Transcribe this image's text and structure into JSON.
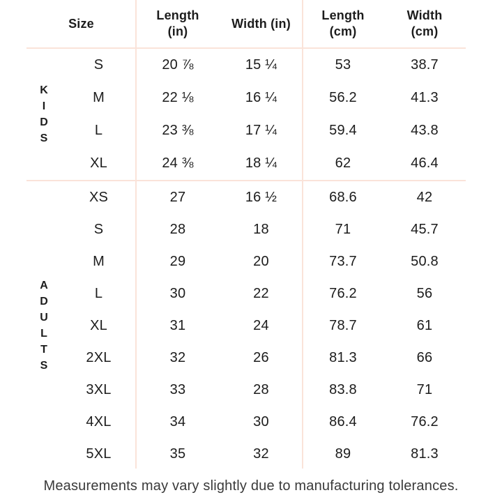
{
  "page": {
    "background": "#ffffff",
    "line_color": "#fae3d9",
    "text_color": "#1c1c1c",
    "footer_note": "Measurements may vary slightly due to manufacturing tolerances."
  },
  "table": {
    "headers": {
      "size": "Size",
      "length_in": "Length\n(in)",
      "width_in": "Width (in)",
      "length_cm": "Length\n(cm)",
      "width_cm": "Width\n(cm)"
    },
    "column_keys": [
      "size",
      "length_in",
      "width_in",
      "length_cm",
      "width_cm"
    ],
    "groups": [
      {
        "label": "KIDS",
        "rows": [
          {
            "size": "S",
            "length_in": "20 ⅞",
            "width_in": "15 ¼",
            "length_cm": "53",
            "width_cm": "38.7"
          },
          {
            "size": "M",
            "length_in": "22 ⅛",
            "width_in": "16 ¼",
            "length_cm": "56.2",
            "width_cm": "41.3"
          },
          {
            "size": "L",
            "length_in": "23 ⅜",
            "width_in": "17 ¼",
            "length_cm": "59.4",
            "width_cm": "43.8"
          },
          {
            "size": "XL",
            "length_in": "24 ⅜",
            "width_in": "18 ¼",
            "length_cm": "62",
            "width_cm": "46.4"
          }
        ]
      },
      {
        "label": "ADULTS",
        "rows": [
          {
            "size": "XS",
            "length_in": "27",
            "width_in": "16 ½",
            "length_cm": "68.6",
            "width_cm": "42"
          },
          {
            "size": "S",
            "length_in": "28",
            "width_in": "18",
            "length_cm": "71",
            "width_cm": "45.7"
          },
          {
            "size": "M",
            "length_in": "29",
            "width_in": "20",
            "length_cm": "73.7",
            "width_cm": "50.8"
          },
          {
            "size": "L",
            "length_in": "30",
            "width_in": "22",
            "length_cm": "76.2",
            "width_cm": "56"
          },
          {
            "size": "XL",
            "length_in": "31",
            "width_in": "24",
            "length_cm": "78.7",
            "width_cm": "61"
          },
          {
            "size": "2XL",
            "length_in": "32",
            "width_in": "26",
            "length_cm": "81.3",
            "width_cm": "66"
          },
          {
            "size": "3XL",
            "length_in": "33",
            "width_in": "28",
            "length_cm": "83.8",
            "width_cm": "71"
          },
          {
            "size": "4XL",
            "length_in": "34",
            "width_in": "30",
            "length_cm": "86.4",
            "width_cm": "76.2"
          },
          {
            "size": "5XL",
            "length_in": "35",
            "width_in": "32",
            "length_cm": "89",
            "width_cm": "81.3"
          }
        ]
      }
    ]
  }
}
